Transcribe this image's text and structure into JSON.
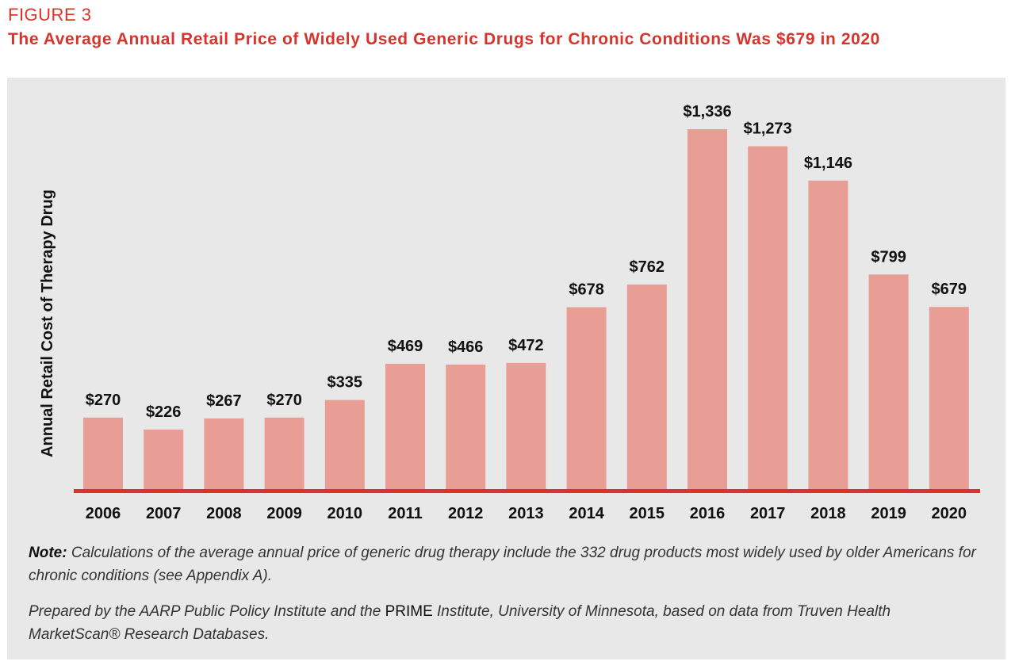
{
  "figure_label": "FIGURE 3",
  "chart_data": {
    "type": "bar",
    "title": "The Average Annual Retail Price of Widely Used Generic Drugs for Chronic Conditions Was $679 in 2020",
    "xlabel": "",
    "ylabel": "Annual Retail Cost of Therapy Drug",
    "categories": [
      "2006",
      "2007",
      "2008",
      "2009",
      "2010",
      "2011",
      "2012",
      "2013",
      "2014",
      "2015",
      "2016",
      "2017",
      "2018",
      "2019",
      "2020"
    ],
    "values": [
      270,
      226,
      267,
      270,
      335,
      469,
      466,
      472,
      678,
      762,
      1336,
      1273,
      1146,
      799,
      679
    ],
    "data_labels": [
      "$270",
      "$226",
      "$267",
      "$270",
      "$335",
      "$469",
      "$466",
      "$472",
      "$678",
      "$762",
      "$1,336",
      "$1,273",
      "$1,146",
      "$799",
      "$679"
    ],
    "ylim": [
      0,
      1336
    ],
    "grid": false,
    "bar_color": "#e89e94",
    "axis_color": "#d9342b"
  },
  "notes": {
    "note_label": "Note:",
    "note_text": " Calculations of the average annual price of generic drug therapy include the 332 drug products most widely used by older Americans for chronic conditions (see Appendix A).",
    "source_pre": "Prepared by the AARP Public Policy Institute and the ",
    "source_upright": "PRIME",
    "source_post": " Institute, University of Minnesota, based on data from Truven Health MarketScan® Research Databases."
  }
}
